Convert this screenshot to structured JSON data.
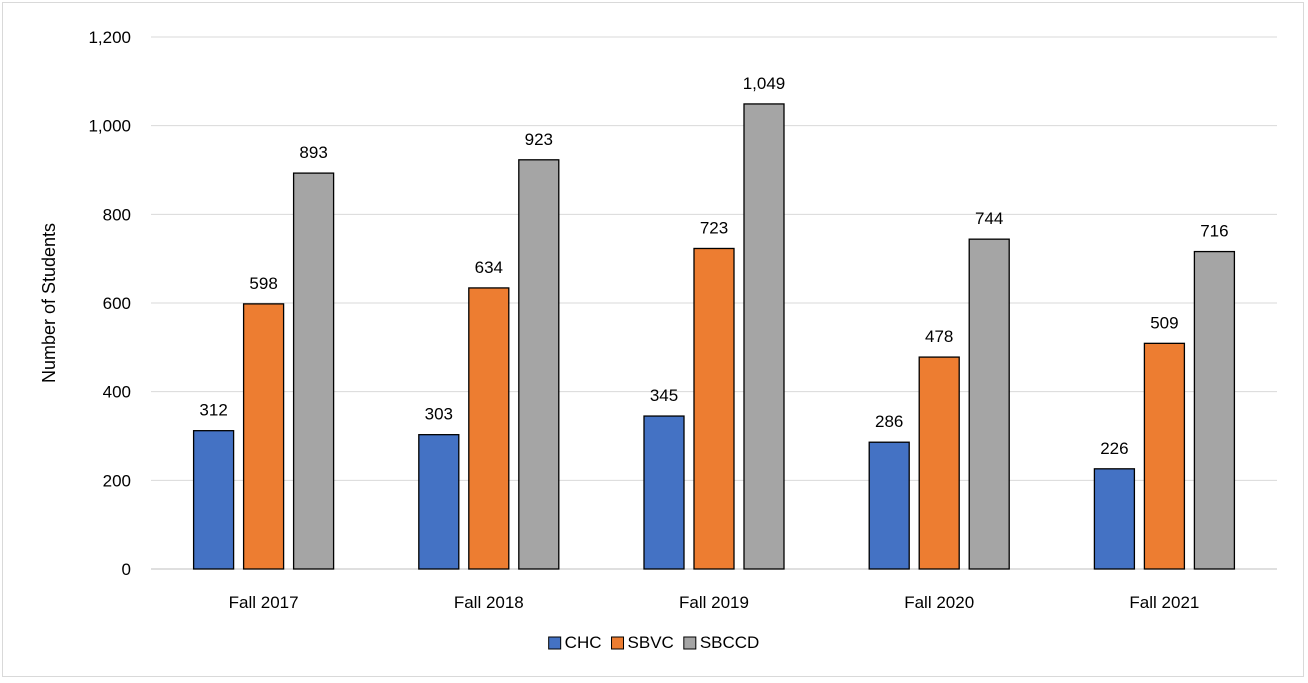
{
  "chart_data": {
    "type": "bar",
    "title": "",
    "xlabel": "",
    "ylabel": "Number of Students",
    "categories": [
      "Fall 2017",
      "Fall 2018",
      "Fall 2019",
      "Fall 2020",
      "Fall 2021"
    ],
    "series": [
      {
        "name": "CHC",
        "color": "#4472c4",
        "values": [
          312,
          303,
          345,
          286,
          226
        ],
        "labels": [
          "312",
          "303",
          "345",
          "286",
          "226"
        ]
      },
      {
        "name": "SBVC",
        "color": "#ed7d31",
        "values": [
          598,
          634,
          723,
          478,
          509
        ],
        "labels": [
          "598",
          "634",
          "723",
          "478",
          "509"
        ]
      },
      {
        "name": "SBCCD",
        "color": "#a5a5a5",
        "values": [
          893,
          923,
          1049,
          744,
          716
        ],
        "labels": [
          "893",
          "923",
          "1,049",
          "744",
          "716"
        ]
      }
    ],
    "ylim": [
      0,
      1200
    ],
    "yticks": [
      0,
      200,
      400,
      600,
      800,
      1000,
      1200
    ],
    "ytick_labels": [
      "0",
      "200",
      "400",
      "600",
      "800",
      "1,000",
      "1,200"
    ],
    "grid": true,
    "legend_position": "bottom",
    "data_labels": true
  }
}
